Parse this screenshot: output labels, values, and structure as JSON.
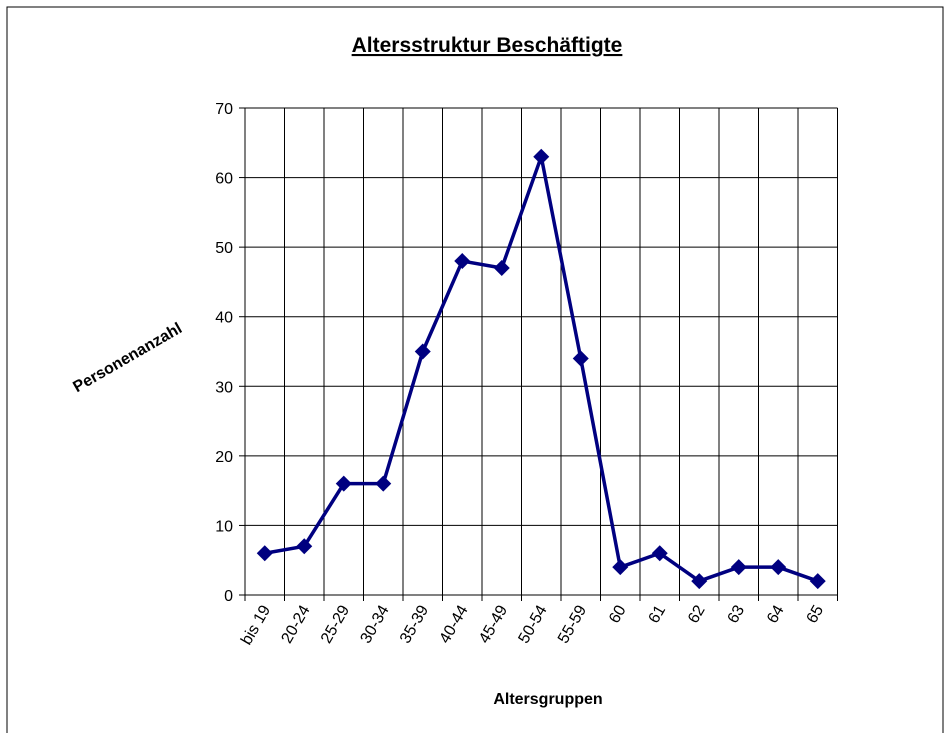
{
  "chart_data": {
    "type": "line",
    "title": "Altersstruktur Beschäftigte",
    "x_label": "Altersgruppen",
    "y_label": "Personenanzahl",
    "categories": [
      "bis 19",
      "20-24",
      "25-29",
      "30-34",
      "35-39",
      "40-44",
      "45-49",
      "50-54",
      "55-59",
      "60",
      "61",
      "62",
      "63",
      "64",
      "65"
    ],
    "series": [
      {
        "name": "Personenanzahl",
        "color": "#000080",
        "values": [
          6,
          7,
          16,
          16,
          35,
          48,
          47,
          63,
          34,
          4,
          6,
          2,
          4,
          4,
          2
        ]
      }
    ],
    "ylim": [
      0,
      70
    ],
    "yticks": [
      0,
      10,
      20,
      30,
      40,
      50,
      60,
      70
    ],
    "grid": true
  }
}
